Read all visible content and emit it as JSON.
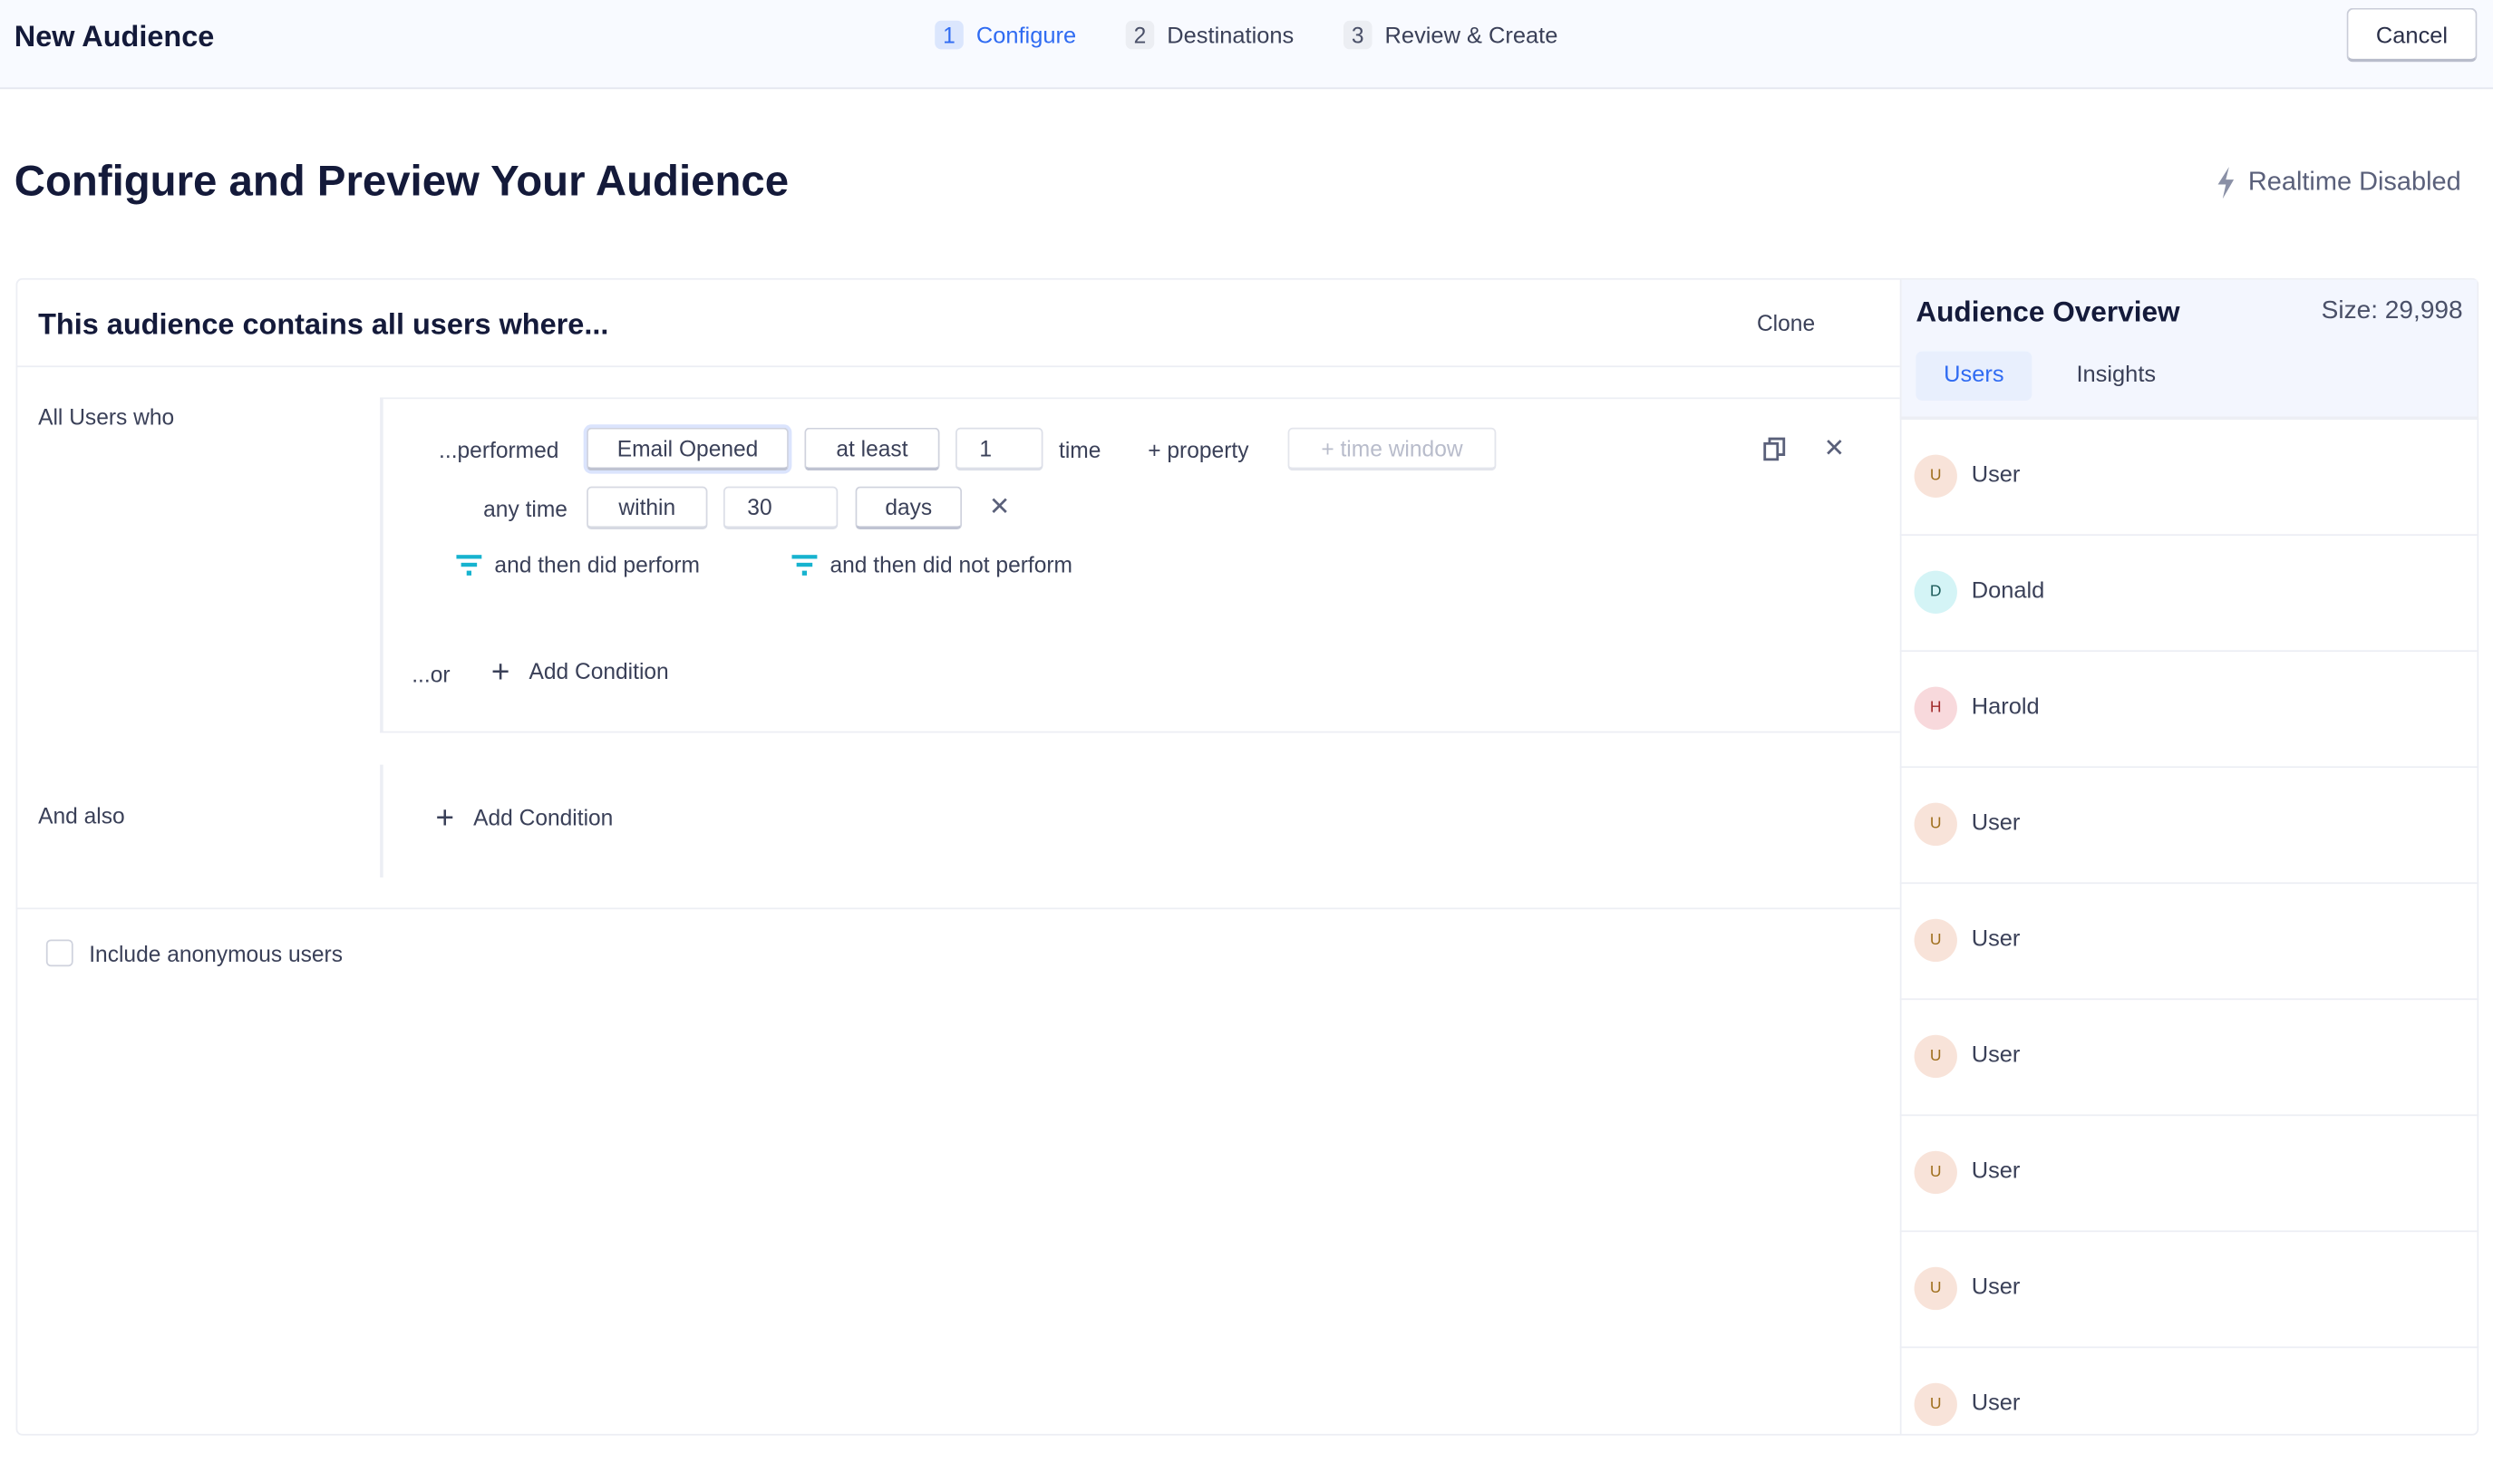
{
  "header": {
    "title": "New Audience",
    "steps": [
      {
        "num": "1",
        "label": "Configure",
        "active": true
      },
      {
        "num": "2",
        "label": "Destinations"
      },
      {
        "num": "3",
        "label": "Review & Create"
      }
    ],
    "cancel_label": "Cancel"
  },
  "page": {
    "title": "Configure and Preview Your Audience",
    "realtime_label": "Realtime Disabled",
    "realtime_icon": "lightning-icon"
  },
  "builder": {
    "heading": "This audience contains all users where...",
    "clone_label": "Clone",
    "group1_label": "All Users who",
    "condition": {
      "performed_label": "...performed",
      "event": "Email Opened",
      "comparator": "at least",
      "count": "1",
      "time_label": "time",
      "add_property": "+ property",
      "time_window_placeholder": "+ time window",
      "any_time_label": "any time",
      "within": "within",
      "within_value": "30",
      "unit": "days",
      "then_did": "and then did perform",
      "then_did_not": "and then did not perform"
    },
    "or_label": "...or",
    "add_condition": "Add Condition",
    "group2_label": "And also",
    "add_condition2": "Add Condition",
    "anonymous_label": "Include anonymous users",
    "anonymous_checked": false
  },
  "overview": {
    "title": "Audience Overview",
    "size": "Size: 29,998",
    "tabs": [
      {
        "label": "Users",
        "active": true
      },
      {
        "label": "Insights"
      }
    ],
    "users": [
      {
        "initial": "U",
        "name": "User",
        "bg": "#f8e3d9",
        "fg": "#a0701e"
      },
      {
        "initial": "D",
        "name": "Donald",
        "bg": "#d4f4f6",
        "fg": "#1f5e5c"
      },
      {
        "initial": "H",
        "name": "Harold",
        "bg": "#f8d9dc",
        "fg": "#a12a2a"
      },
      {
        "initial": "U",
        "name": "User",
        "bg": "#f8e3d9",
        "fg": "#a0701e"
      },
      {
        "initial": "U",
        "name": "User",
        "bg": "#f8e3d9",
        "fg": "#a0701e"
      },
      {
        "initial": "U",
        "name": "User",
        "bg": "#f8e3d9",
        "fg": "#a0701e"
      },
      {
        "initial": "U",
        "name": "User",
        "bg": "#f8e3d9",
        "fg": "#a0701e"
      },
      {
        "initial": "U",
        "name": "User",
        "bg": "#f8e3d9",
        "fg": "#a0701e"
      },
      {
        "initial": "U",
        "name": "User",
        "bg": "#f8e3d9",
        "fg": "#a0701e"
      }
    ]
  },
  "colors": {
    "accent": "#2f6bf2",
    "filter_icon": "#17b3cf"
  }
}
